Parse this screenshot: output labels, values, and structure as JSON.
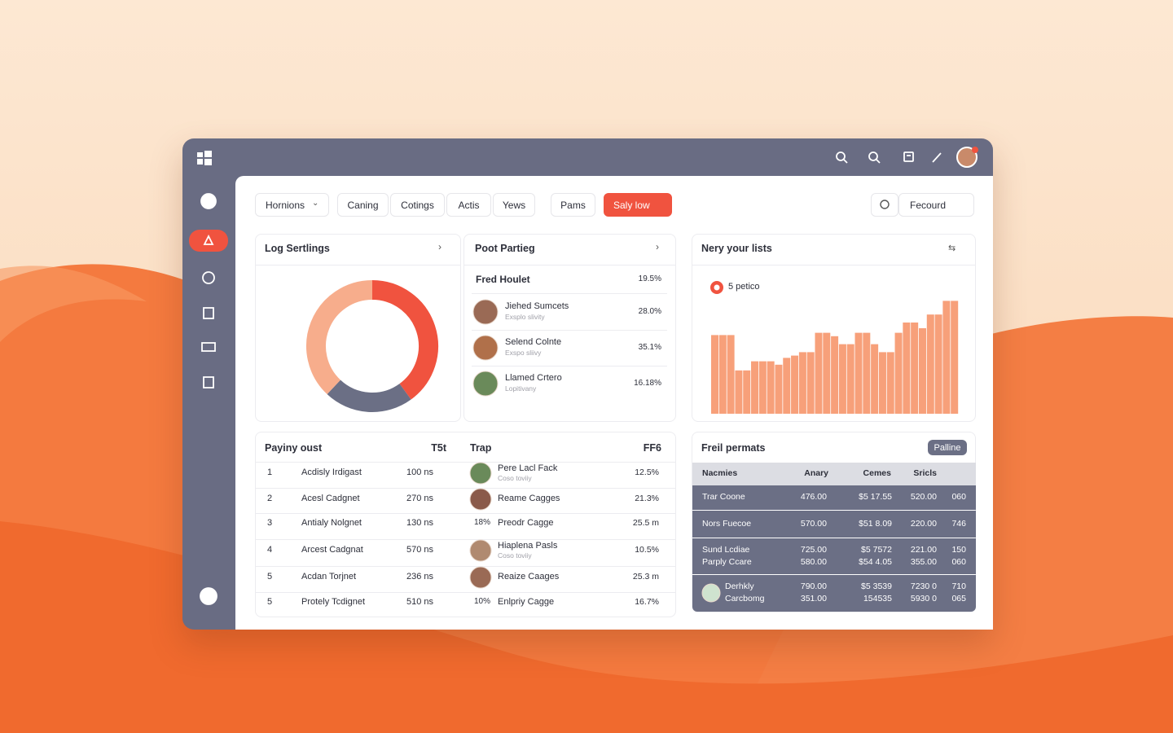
{
  "toolbar": {
    "filters": [
      "Hornions",
      "Caning",
      "Cotings",
      "Actis",
      "Yews",
      "Pams"
    ],
    "action": "Saly low",
    "sort": "Fecourd"
  },
  "chart_data": [
    {
      "type": "pie",
      "title": "Log Sertlings",
      "values": [
        40,
        22,
        38
      ],
      "colors": [
        "#f0533f",
        "#6b6f85",
        "#f7ad8c"
      ]
    },
    {
      "type": "bar",
      "title": "Nery your lists",
      "legend": "5 petico",
      "color": "#f7a07a",
      "ylim": [
        0,
        100
      ],
      "values": [
        69,
        69,
        69,
        38,
        38,
        46,
        46,
        46,
        43,
        49,
        51,
        54,
        54,
        71,
        71,
        68,
        61,
        61,
        71,
        71,
        61,
        54,
        54,
        71,
        80,
        80,
        75,
        87,
        87,
        99,
        99
      ]
    }
  ],
  "partners": {
    "title": "Poot Partieg",
    "header": [
      "Fred Houlet",
      "19.5%"
    ],
    "rows": [
      {
        "name": "Jiehed Sumcets",
        "sub": "Exsplo slivity",
        "value": "28.0%"
      },
      {
        "name": "Selend Colnte",
        "sub": "Exspo sliivy",
        "value": "35.1%"
      },
      {
        "name": "Llamed Crtero",
        "sub": "Lopitivany",
        "value": "16.18%"
      }
    ]
  },
  "payout": {
    "title": "Payiny oust",
    "column": "T5t",
    "rows": [
      [
        "1",
        "Acdisly Irdigast",
        "100 ns"
      ],
      [
        "2",
        "Acesl Cadgnet",
        "270 ns"
      ],
      [
        "3",
        "Antialy Nolgnet",
        "130 ns"
      ],
      [
        "4",
        "Arcest Cadgnat",
        "570 ns"
      ],
      [
        "5",
        "Acdan Torjnet",
        "236 ns"
      ],
      [
        "5",
        "Protely Tcdignet",
        "510 ns"
      ]
    ]
  },
  "trap": {
    "title": "Trap",
    "column": "FF6",
    "rows": [
      {
        "name": "Pere Lacl Fack",
        "sub": "Coso toviiy",
        "value": "12.5%"
      },
      {
        "name": "Reame Cagges",
        "value": "21.3%"
      },
      {
        "prefix": "18%",
        "name": "Preodr Cagge",
        "value": "25.5 m"
      },
      {
        "name": "Hiaplena Pasls",
        "sub": "Coso toviiy",
        "value": "10.5%"
      },
      {
        "name": "Reaize Caages",
        "value": "25.3 m"
      },
      {
        "prefix": "10%",
        "name": "Enlpriy Cagge",
        "value": "16.7%"
      }
    ]
  },
  "permits": {
    "title": "Freil permats",
    "button": "Palline",
    "columns": [
      "Nacmies",
      "Anary",
      "Cemes",
      "Sricls"
    ],
    "rows": [
      [
        [
          "Trar Coone"
        ],
        [
          "476.00"
        ],
        [
          "$5 17.55"
        ],
        [
          "520.00"
        ],
        [
          "060"
        ]
      ],
      [
        [
          "Nors Fuecoe"
        ],
        [
          "570.00"
        ],
        [
          "$51 8.09"
        ],
        [
          "220.00"
        ],
        [
          "746"
        ]
      ],
      [
        [
          "Sund Lcdiae",
          "Parply Ccare"
        ],
        [
          "725.00",
          "580.00"
        ],
        [
          "$5 7572",
          "$54 4.05"
        ],
        [
          "221.00",
          "355.00"
        ],
        [
          "150",
          "060"
        ]
      ],
      [
        [
          "Derhkly",
          "Carcbomg"
        ],
        [
          "790.00",
          "351.00"
        ],
        [
          "$5 3539",
          "154535"
        ],
        [
          "7230 0",
          "5930 0"
        ],
        [
          "710",
          "065"
        ]
      ]
    ]
  }
}
